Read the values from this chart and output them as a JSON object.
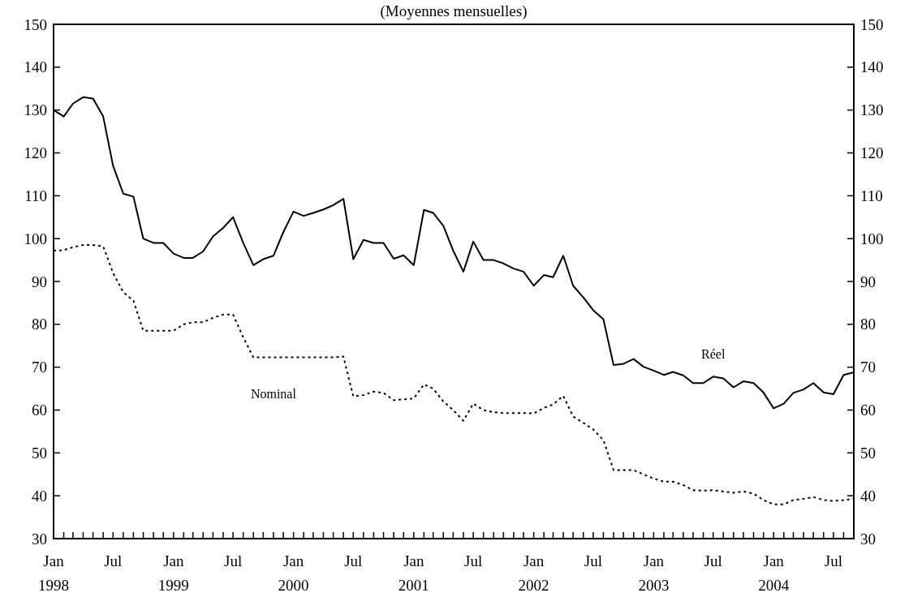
{
  "chart_data": {
    "type": "line",
    "title": "(Moyennes mensuelles)",
    "x": [
      "1998-01",
      "1998-02",
      "1998-03",
      "1998-04",
      "1998-05",
      "1998-06",
      "1998-07",
      "1998-08",
      "1998-09",
      "1998-10",
      "1998-11",
      "1998-12",
      "1999-01",
      "1999-02",
      "1999-03",
      "1999-04",
      "1999-05",
      "1999-06",
      "1999-07",
      "1999-08",
      "1999-09",
      "1999-10",
      "1999-11",
      "1999-12",
      "2000-01",
      "2000-02",
      "2000-03",
      "2000-04",
      "2000-05",
      "2000-06",
      "2000-07",
      "2000-08",
      "2000-09",
      "2000-10",
      "2000-11",
      "2000-12",
      "2001-01",
      "2001-02",
      "2001-03",
      "2001-04",
      "2001-05",
      "2001-06",
      "2001-07",
      "2001-08",
      "2001-09",
      "2001-10",
      "2001-11",
      "2001-12",
      "2002-01",
      "2002-02",
      "2002-03",
      "2002-04",
      "2002-05",
      "2002-06",
      "2002-07",
      "2002-08",
      "2002-09",
      "2002-10",
      "2002-11",
      "2002-12",
      "2003-01",
      "2003-02",
      "2003-03",
      "2003-04",
      "2003-05",
      "2003-06",
      "2003-07",
      "2003-08",
      "2003-09",
      "2003-10",
      "2003-11",
      "2003-12",
      "2004-01",
      "2004-02",
      "2004-03",
      "2004-04",
      "2004-05",
      "2004-06",
      "2004-07",
      "2004-08",
      "2004-09"
    ],
    "series": [
      {
        "name": "Réel",
        "color": "#000000",
        "line_style": "solid",
        "values": [
          130,
          128.5,
          131.5,
          133,
          132.7,
          128.5,
          117,
          110.5,
          109.8,
          100,
          99,
          99,
          96.5,
          95.5,
          95.5,
          97,
          100.5,
          102.5,
          105,
          99,
          93.8,
          95.2,
          96,
          101.5,
          106.3,
          105.3,
          106,
          106.8,
          107.8,
          109.3,
          95.2,
          99.7,
          99,
          99,
          95.3,
          96.1,
          93.8,
          106.7,
          106,
          103,
          97.2,
          92.3,
          99.3,
          95,
          95,
          94.2,
          93,
          92.3,
          89,
          91.5,
          91,
          96,
          89,
          86.3,
          83.3,
          81.2,
          70.5,
          70.8,
          71.9,
          70.1,
          69.2,
          68.2,
          68.9,
          68.1,
          66.3,
          66.3,
          67.8,
          67.4,
          65.3,
          66.7,
          66.3,
          64.1,
          60.4,
          61.5,
          64,
          64.8,
          66.3,
          64.1,
          63.7,
          68.2,
          68.8
        ]
      },
      {
        "name": "Nominal",
        "color": "#000000",
        "line_style": "dotted",
        "values": [
          97.2,
          97.3,
          98,
          98.5,
          98.5,
          98.2,
          92,
          87.5,
          85.5,
          78.5,
          78.5,
          78.5,
          78.5,
          80,
          80.5,
          80.5,
          81.5,
          82.3,
          82.3,
          77,
          72.3,
          72.3,
          72.3,
          72.3,
          72.3,
          72.3,
          72.3,
          72.3,
          72.3,
          72.5,
          63.2,
          63.5,
          64.3,
          64,
          62.3,
          62.5,
          62.7,
          66,
          65,
          62,
          60,
          57.5,
          61.5,
          60,
          59.5,
          59.3,
          59.3,
          59.3,
          59.2,
          60.5,
          61.3,
          63.3,
          58.5,
          57,
          55.5,
          53,
          46,
          46,
          46,
          45,
          44,
          43.3,
          43.3,
          42.5,
          41.3,
          41.2,
          41.3,
          41,
          40.7,
          41,
          40.5,
          39,
          38,
          38,
          39,
          39.3,
          39.7,
          39,
          38.8,
          39,
          39.3
        ]
      }
    ],
    "xlim": [
      "1998-01",
      "2004-09"
    ],
    "xticks": [
      {
        "value": "1998-01",
        "label": "Jan 1998"
      },
      {
        "value": "1998-07",
        "label": "Jul"
      },
      {
        "value": "1999-01",
        "label": "Jan 1999"
      },
      {
        "value": "1999-07",
        "label": "Jul"
      },
      {
        "value": "2000-01",
        "label": "Jan 2000"
      },
      {
        "value": "2000-07",
        "label": "Jul"
      },
      {
        "value": "2001-01",
        "label": "Jan 2001"
      },
      {
        "value": "2001-07",
        "label": "Jul"
      },
      {
        "value": "2002-01",
        "label": "Jan 2002"
      },
      {
        "value": "2002-07",
        "label": "Jul"
      },
      {
        "value": "2003-01",
        "label": "Jan 2003"
      },
      {
        "value": "2003-07",
        "label": "Jul"
      },
      {
        "value": "2004-01",
        "label": "Jan 2004"
      },
      {
        "value": "2004-07",
        "label": "Jul"
      }
    ],
    "ylim": [
      30,
      150
    ],
    "yticks": [
      30,
      40,
      50,
      60,
      70,
      80,
      90,
      100,
      110,
      120,
      130,
      140,
      150
    ],
    "y2lim": [
      30,
      150
    ],
    "y2ticks": [
      30,
      40,
      50,
      60,
      70,
      80,
      90,
      100,
      110,
      120,
      130,
      140,
      150
    ],
    "grid": false,
    "marker": "none"
  }
}
